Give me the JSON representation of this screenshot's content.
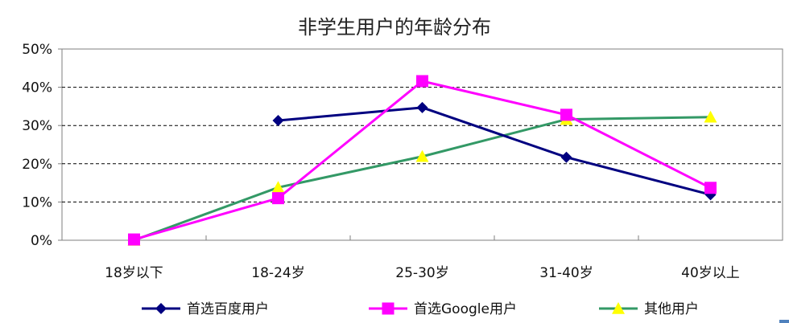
{
  "chart_data": {
    "type": "line",
    "title": "非学生用户的年龄分布",
    "categories": [
      "18岁以下",
      "18-24岁",
      "25-30岁",
      "31-40岁",
      "40岁以上"
    ],
    "ylim": [
      0,
      50
    ],
    "yticks": [
      "0%",
      "10%",
      "20%",
      "30%",
      "40%",
      "50%"
    ],
    "ytick_values": [
      0,
      10,
      20,
      30,
      40,
      50
    ],
    "grid": "horizontal-dashed",
    "legend": "bottom",
    "series": [
      {
        "name": "首选百度用户",
        "values": [
          null,
          31.3,
          34.7,
          21.7,
          11.9
        ],
        "color": "#000080",
        "marker": "diamond"
      },
      {
        "name": "首选Google用户",
        "values": [
          0.2,
          11.0,
          41.6,
          32.8,
          13.7
        ],
        "color": "#ff00ff",
        "marker": "square"
      },
      {
        "name": "其他用户",
        "values": [
          0.0,
          13.8,
          21.9,
          31.6,
          32.2
        ],
        "color": "#339966",
        "marker": "triangle",
        "marker_color": "#ffff00"
      }
    ]
  }
}
